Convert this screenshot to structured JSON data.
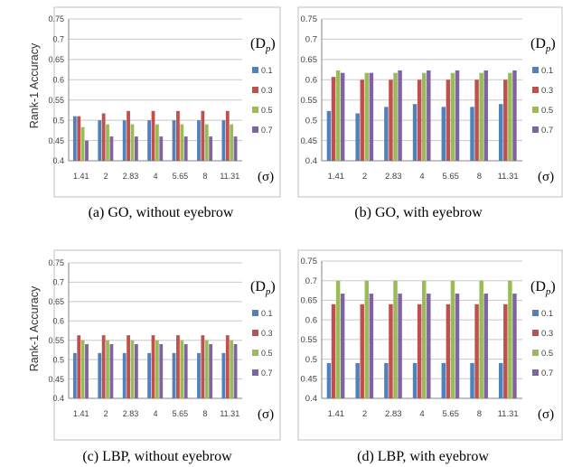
{
  "figure": {
    "ylabel": "Rank-1 Accuracy",
    "legend_title": "(D",
    "legend_title_sub": "p",
    "legend_title_close": ")",
    "x_unit": "(σ)"
  },
  "colors": {
    "0.1": "#4f81bd",
    "0.3": "#c0504d",
    "0.5": "#9bbb59",
    "0.7": "#8064a2"
  },
  "chart_data": [
    {
      "type": "bar",
      "caption": "(a)  GO, without eyebrow",
      "categories": [
        "1.41",
        "2",
        "2.83",
        "4",
        "5.65",
        "8",
        "11.31"
      ],
      "yticks": [
        "0.4",
        "0.45",
        "0.5",
        "0.55",
        "0.6",
        "0.65",
        "0.7",
        "0.75"
      ],
      "ylim": [
        0.4,
        0.75
      ],
      "grid": true,
      "legend_placement": "right",
      "series": [
        {
          "name": "0.1",
          "values": [
            0.51,
            0.5,
            0.5,
            0.5,
            0.5,
            0.5,
            0.5
          ]
        },
        {
          "name": "0.3",
          "values": [
            0.51,
            0.517,
            0.523,
            0.523,
            0.523,
            0.523,
            0.523
          ]
        },
        {
          "name": "0.5",
          "values": [
            0.483,
            0.49,
            0.49,
            0.49,
            0.49,
            0.49,
            0.49
          ]
        },
        {
          "name": "0.7",
          "values": [
            0.45,
            0.46,
            0.46,
            0.46,
            0.46,
            0.46,
            0.46
          ]
        }
      ]
    },
    {
      "type": "bar",
      "caption": "(b) GO, with eyebrow",
      "categories": [
        "1.41",
        "2",
        "2.83",
        "4",
        "5.65",
        "8",
        "11.31"
      ],
      "yticks": [
        "0.4",
        "0.45",
        "0.5",
        "0.55",
        "0.6",
        "0.65",
        "0.7",
        "0.75"
      ],
      "ylim": [
        0.4,
        0.75
      ],
      "grid": true,
      "legend_placement": "right",
      "series": [
        {
          "name": "0.1",
          "values": [
            0.523,
            0.517,
            0.533,
            0.54,
            0.533,
            0.533,
            0.54
          ]
        },
        {
          "name": "0.3",
          "values": [
            0.607,
            0.6,
            0.6,
            0.6,
            0.6,
            0.6,
            0.6
          ]
        },
        {
          "name": "0.5",
          "values": [
            0.623,
            0.617,
            0.617,
            0.617,
            0.617,
            0.617,
            0.617
          ]
        },
        {
          "name": "0.7",
          "values": [
            0.617,
            0.617,
            0.623,
            0.623,
            0.623,
            0.623,
            0.623
          ]
        }
      ]
    },
    {
      "type": "bar",
      "caption": "(c) LBP, without eyebrow",
      "categories": [
        "1.41",
        "2",
        "2.83",
        "4",
        "5.65",
        "8",
        "11.31"
      ],
      "yticks": [
        "0.4",
        "0.45",
        "0.5",
        "0.55",
        "0.6",
        "0.65",
        "0.7",
        "0.75"
      ],
      "ylim": [
        0.4,
        0.75
      ],
      "grid": true,
      "legend_placement": "right",
      "series": [
        {
          "name": "0.1",
          "values": [
            0.517,
            0.517,
            0.517,
            0.517,
            0.517,
            0.517,
            0.517
          ]
        },
        {
          "name": "0.3",
          "values": [
            0.563,
            0.563,
            0.563,
            0.563,
            0.563,
            0.563,
            0.563
          ]
        },
        {
          "name": "0.5",
          "values": [
            0.55,
            0.55,
            0.55,
            0.55,
            0.55,
            0.55,
            0.55
          ]
        },
        {
          "name": "0.7",
          "values": [
            0.54,
            0.54,
            0.54,
            0.54,
            0.54,
            0.54,
            0.54
          ]
        }
      ]
    },
    {
      "type": "bar",
      "caption": "(d) LBP, with eyebrow",
      "categories": [
        "1.41",
        "2",
        "2.83",
        "4",
        "5.65",
        "8",
        "11.31"
      ],
      "yticks": [
        "0.4",
        "0.45",
        "0.5",
        "0.55",
        "0.6",
        "0.65",
        "0.7",
        "0.75"
      ],
      "ylim": [
        0.4,
        0.75
      ],
      "grid": true,
      "legend_placement": "right",
      "series": [
        {
          "name": "0.1",
          "values": [
            0.49,
            0.49,
            0.49,
            0.49,
            0.49,
            0.49,
            0.49
          ]
        },
        {
          "name": "0.3",
          "values": [
            0.64,
            0.64,
            0.64,
            0.64,
            0.64,
            0.64,
            0.64
          ]
        },
        {
          "name": "0.5",
          "values": [
            0.7,
            0.7,
            0.7,
            0.7,
            0.7,
            0.7,
            0.7
          ]
        },
        {
          "name": "0.7",
          "values": [
            0.667,
            0.667,
            0.667,
            0.667,
            0.667,
            0.667,
            0.667
          ]
        }
      ]
    }
  ]
}
